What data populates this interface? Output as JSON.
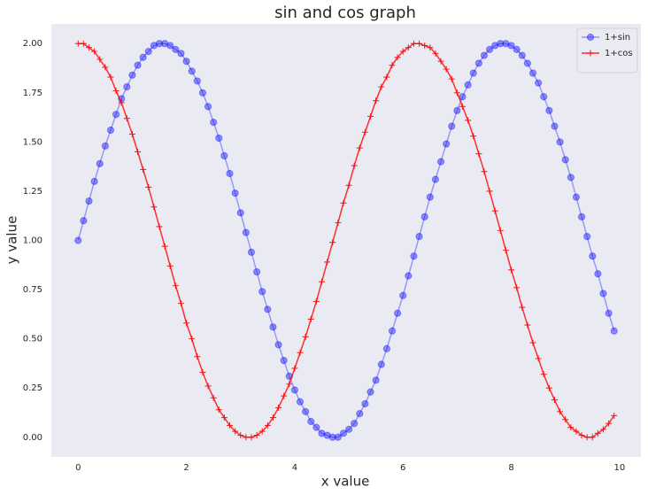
{
  "chart_data": {
    "type": "line",
    "title": "sin and cos graph",
    "x_label": "x value",
    "y_label": "y value",
    "x": [
      0,
      0.1,
      0.2,
      0.3,
      0.4,
      0.5,
      0.6,
      0.7,
      0.8,
      0.9,
      1,
      1.1,
      1.2,
      1.3,
      1.4,
      1.5,
      1.6,
      1.7,
      1.8,
      1.9,
      2,
      2.1,
      2.2,
      2.3,
      2.4,
      2.5,
      2.6,
      2.7,
      2.8,
      2.9,
      3,
      3.1,
      3.2,
      3.3,
      3.4,
      3.5,
      3.6,
      3.7,
      3.8,
      3.9,
      4,
      4.1,
      4.2,
      4.3,
      4.4,
      4.5,
      4.6,
      4.7,
      4.8,
      4.9,
      5,
      5.1,
      5.2,
      5.3,
      5.4,
      5.5,
      5.6,
      5.7,
      5.8,
      5.9,
      6,
      6.1,
      6.2,
      6.3,
      6.4,
      6.5,
      6.6,
      6.7,
      6.8,
      6.9,
      7,
      7.1,
      7.2,
      7.3,
      7.4,
      7.5,
      7.6,
      7.7,
      7.8,
      7.9,
      8,
      8.1,
      8.2,
      8.3,
      8.4,
      8.5,
      8.6,
      8.7,
      8.8,
      8.9,
      9,
      9.1,
      9.2,
      9.3,
      9.4,
      9.5,
      9.6,
      9.7,
      9.8,
      9.9
    ],
    "series": [
      {
        "name": "1+sin",
        "color": "#0000ff",
        "alpha": 0.35,
        "marker": "circle",
        "values": [
          1.0,
          1.1,
          1.2,
          1.3,
          1.39,
          1.48,
          1.56,
          1.64,
          1.72,
          1.78,
          1.84,
          1.89,
          1.93,
          1.96,
          1.99,
          2.0,
          2.0,
          1.99,
          1.97,
          1.95,
          1.91,
          1.86,
          1.81,
          1.75,
          1.68,
          1.6,
          1.52,
          1.43,
          1.34,
          1.24,
          1.14,
          1.04,
          0.94,
          0.84,
          0.74,
          0.65,
          0.56,
          0.47,
          0.39,
          0.31,
          0.24,
          0.18,
          0.13,
          0.08,
          0.05,
          0.02,
          0.01,
          0.0,
          0.0,
          0.02,
          0.04,
          0.07,
          0.12,
          0.17,
          0.23,
          0.29,
          0.37,
          0.45,
          0.54,
          0.63,
          0.72,
          0.82,
          0.92,
          1.02,
          1.12,
          1.22,
          1.31,
          1.4,
          1.49,
          1.58,
          1.66,
          1.73,
          1.79,
          1.85,
          1.9,
          1.94,
          1.97,
          1.99,
          2.0,
          2.0,
          1.99,
          1.97,
          1.94,
          1.9,
          1.85,
          1.8,
          1.73,
          1.66,
          1.58,
          1.5,
          1.41,
          1.32,
          1.22,
          1.12,
          1.02,
          0.92,
          0.83,
          0.73,
          0.63,
          0.54
        ]
      },
      {
        "name": "1+cos",
        "color": "#ff0000",
        "alpha": 0.8,
        "marker": "plus",
        "values": [
          2.0,
          2.0,
          1.98,
          1.96,
          1.92,
          1.88,
          1.83,
          1.76,
          1.7,
          1.62,
          1.54,
          1.45,
          1.36,
          1.27,
          1.17,
          1.07,
          0.97,
          0.87,
          0.77,
          0.68,
          0.58,
          0.5,
          0.41,
          0.33,
          0.26,
          0.2,
          0.14,
          0.1,
          0.06,
          0.03,
          0.01,
          0.0,
          0.0,
          0.01,
          0.03,
          0.06,
          0.1,
          0.15,
          0.21,
          0.27,
          0.35,
          0.43,
          0.51,
          0.6,
          0.69,
          0.79,
          0.89,
          0.99,
          1.09,
          1.19,
          1.28,
          1.38,
          1.47,
          1.55,
          1.63,
          1.71,
          1.78,
          1.83,
          1.89,
          1.93,
          1.96,
          1.98,
          2.0,
          2.0,
          1.99,
          1.98,
          1.95,
          1.91,
          1.87,
          1.82,
          1.75,
          1.68,
          1.61,
          1.53,
          1.44,
          1.35,
          1.25,
          1.15,
          1.05,
          0.95,
          0.85,
          0.76,
          0.66,
          0.57,
          0.48,
          0.4,
          0.32,
          0.25,
          0.19,
          0.13,
          0.09,
          0.05,
          0.03,
          0.01,
          0.0,
          0.0,
          0.02,
          0.04,
          0.07,
          0.11
        ]
      }
    ],
    "xlim": [
      -0.495,
      10.395
    ],
    "ylim": [
      -0.1,
      2.1
    ],
    "xticks": [
      0,
      2,
      4,
      6,
      8,
      10
    ],
    "yticks": [
      {
        "value": 0,
        "label": "0.00"
      },
      {
        "value": 0.25,
        "label": "0.25"
      },
      {
        "value": 0.5,
        "label": "0.50"
      },
      {
        "value": 0.75,
        "label": "0.75"
      },
      {
        "value": 1,
        "label": "1.00"
      },
      {
        "value": 1.25,
        "label": "1.25"
      },
      {
        "value": 1.5,
        "label": "1.50"
      },
      {
        "value": 1.75,
        "label": "1.75"
      },
      {
        "value": 2,
        "label": "2.00"
      }
    ],
    "grid": false,
    "legend": "upper right",
    "background": "#eaeaf2"
  }
}
